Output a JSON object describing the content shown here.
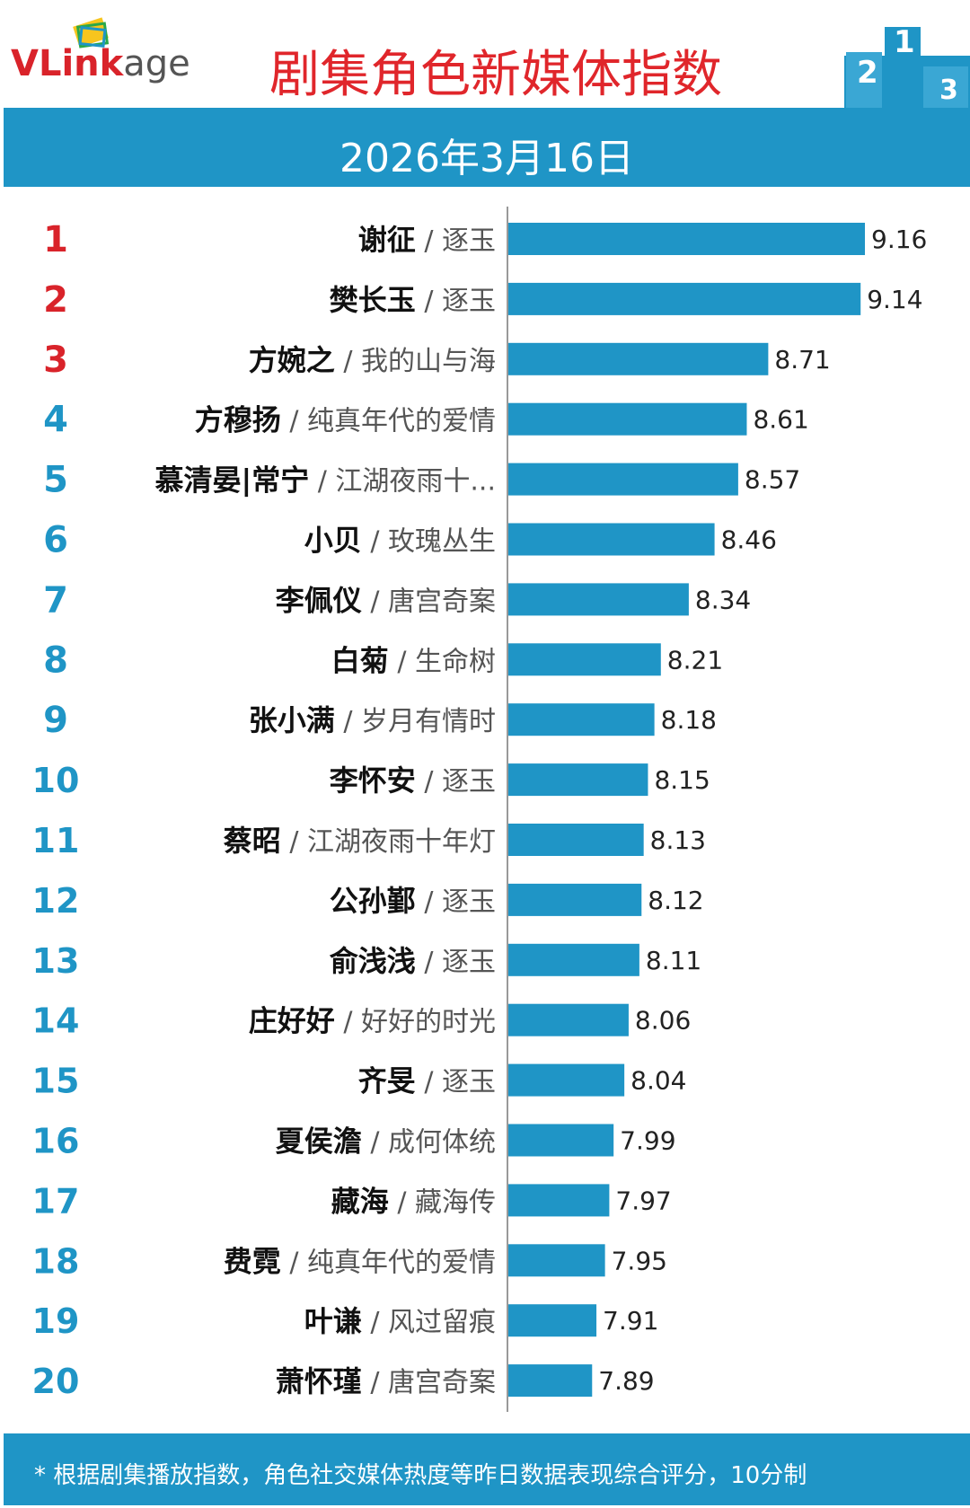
{
  "header": {
    "logo_text": "VLinkage",
    "title": "剧集角色新媒体指数",
    "podium_icon": "podium-icon"
  },
  "date_label": "2026年3月16日",
  "footer": {
    "note": "* 根据剧集播放指数，角色社交媒体热度等昨日数据表现综合评分，10分制"
  },
  "colors": {
    "bar": "#1f95c6",
    "band": "#1f95c6",
    "title": "#e0262b",
    "rank_top3": "#d9232a",
    "rank_rest": "#1f95c6"
  },
  "chart_data": {
    "type": "bar",
    "orientation": "horizontal",
    "title": "剧集角色新媒体指数",
    "xlim": [
      7.5,
      9.3
    ],
    "grid": false,
    "legend": "none",
    "items": [
      {
        "rank": "1",
        "name": "谢征",
        "show": "逐玉",
        "value": 9.16,
        "label": "9.16"
      },
      {
        "rank": "2",
        "name": "樊长玉",
        "show": "逐玉",
        "value": 9.14,
        "label": "9.14"
      },
      {
        "rank": "3",
        "name": "方婉之",
        "show": "我的山与海",
        "value": 8.71,
        "label": "8.71"
      },
      {
        "rank": "4",
        "name": "方穆扬",
        "show": "纯真年代的爱情",
        "value": 8.61,
        "label": "8.61"
      },
      {
        "rank": "5",
        "name": "慕清晏|常宁",
        "show": "江湖夜雨十...",
        "value": 8.57,
        "label": "8.57"
      },
      {
        "rank": "6",
        "name": "小贝",
        "show": "玫瑰丛生",
        "value": 8.46,
        "label": "8.46"
      },
      {
        "rank": "7",
        "name": "李佩仪",
        "show": "唐宫奇案",
        "value": 8.34,
        "label": "8.34"
      },
      {
        "rank": "8",
        "name": "白菊",
        "show": "生命树",
        "value": 8.21,
        "label": "8.21"
      },
      {
        "rank": "9",
        "name": "张小满",
        "show": "岁月有情时",
        "value": 8.18,
        "label": "8.18"
      },
      {
        "rank": "10",
        "name": "李怀安",
        "show": "逐玉",
        "value": 8.15,
        "label": "8.15"
      },
      {
        "rank": "11",
        "name": "蔡昭",
        "show": "江湖夜雨十年灯",
        "value": 8.13,
        "label": "8.13"
      },
      {
        "rank": "12",
        "name": "公孙鄞",
        "show": "逐玉",
        "value": 8.12,
        "label": "8.12"
      },
      {
        "rank": "13",
        "name": "俞浅浅",
        "show": "逐玉",
        "value": 8.11,
        "label": "8.11"
      },
      {
        "rank": "14",
        "name": "庄好好",
        "show": "好好的时光",
        "value": 8.06,
        "label": "8.06"
      },
      {
        "rank": "15",
        "name": "齐旻",
        "show": "逐玉",
        "value": 8.04,
        "label": "8.04"
      },
      {
        "rank": "16",
        "name": "夏侯澹",
        "show": "成何体统",
        "value": 7.99,
        "label": "7.99"
      },
      {
        "rank": "17",
        "name": "藏海",
        "show": "藏海传",
        "value": 7.97,
        "label": "7.97"
      },
      {
        "rank": "18",
        "name": "费霓",
        "show": "纯真年代的爱情",
        "value": 7.95,
        "label": "7.95"
      },
      {
        "rank": "19",
        "name": "叶谦",
        "show": "风过留痕",
        "value": 7.91,
        "label": "7.91"
      },
      {
        "rank": "20",
        "name": "萧怀瑾",
        "show": "唐宫奇案",
        "value": 7.89,
        "label": "7.89"
      }
    ]
  }
}
